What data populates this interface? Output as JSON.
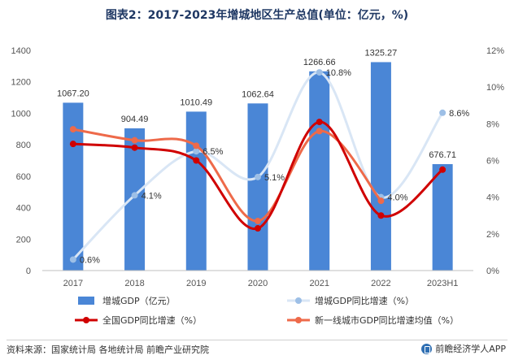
{
  "title": "图表2：2017-2023年增城地区生产总值(单位：亿元，%)",
  "source": "资料来源：国家统计局 各地统计局 前瞻产业研究院",
  "brand": "前瞻经济学人APP",
  "colors": {
    "bar": "#4a86d6",
    "growth_line": "#d9e6f5",
    "growth_marker": "#9dbfe6",
    "national_line": "#d00000",
    "tier1_line": "#ee6a4a"
  },
  "chart_data": {
    "type": "bar",
    "categories": [
      "2017",
      "2018",
      "2019",
      "2020",
      "2021",
      "2022",
      "2023H1"
    ],
    "ylim_left": [
      0,
      1400
    ],
    "yticks_left": [
      0,
      200,
      400,
      600,
      800,
      1000,
      1200,
      1400
    ],
    "ylim_right": [
      0,
      12
    ],
    "yticks_right": [
      "0%",
      "2%",
      "4%",
      "6%",
      "8%",
      "10%",
      "12%"
    ],
    "series": [
      {
        "name": "增城GDP（亿元）",
        "kind": "bar",
        "axis": "left",
        "values": [
          1067.2,
          904.49,
          1010.49,
          1062.64,
          1266.66,
          1325.27,
          676.71
        ],
        "labels": [
          "1067.20",
          "904.49",
          "1010.49",
          "1062.64",
          "1266.66",
          "1325.27",
          "676.71"
        ]
      },
      {
        "name": "增城GDP同比增速（%）",
        "kind": "line",
        "axis": "right",
        "values": [
          0.6,
          4.1,
          6.5,
          5.1,
          10.8,
          4.0,
          8.6
        ],
        "labels": [
          "0.6%",
          "4.1%",
          "6.5%",
          "5.1%",
          "10.8%",
          "4.0%",
          "8.6%"
        ]
      },
      {
        "name": "全国GDP同比增速（%）",
        "kind": "line",
        "axis": "right",
        "values": [
          6.9,
          6.7,
          6.0,
          2.3,
          8.1,
          3.0,
          5.5
        ]
      },
      {
        "name": "新一线城市GDP同比增速均值（%）",
        "kind": "line",
        "axis": "right",
        "values": [
          7.7,
          7.1,
          6.8,
          2.7,
          7.6,
          3.8,
          null
        ]
      }
    ]
  }
}
